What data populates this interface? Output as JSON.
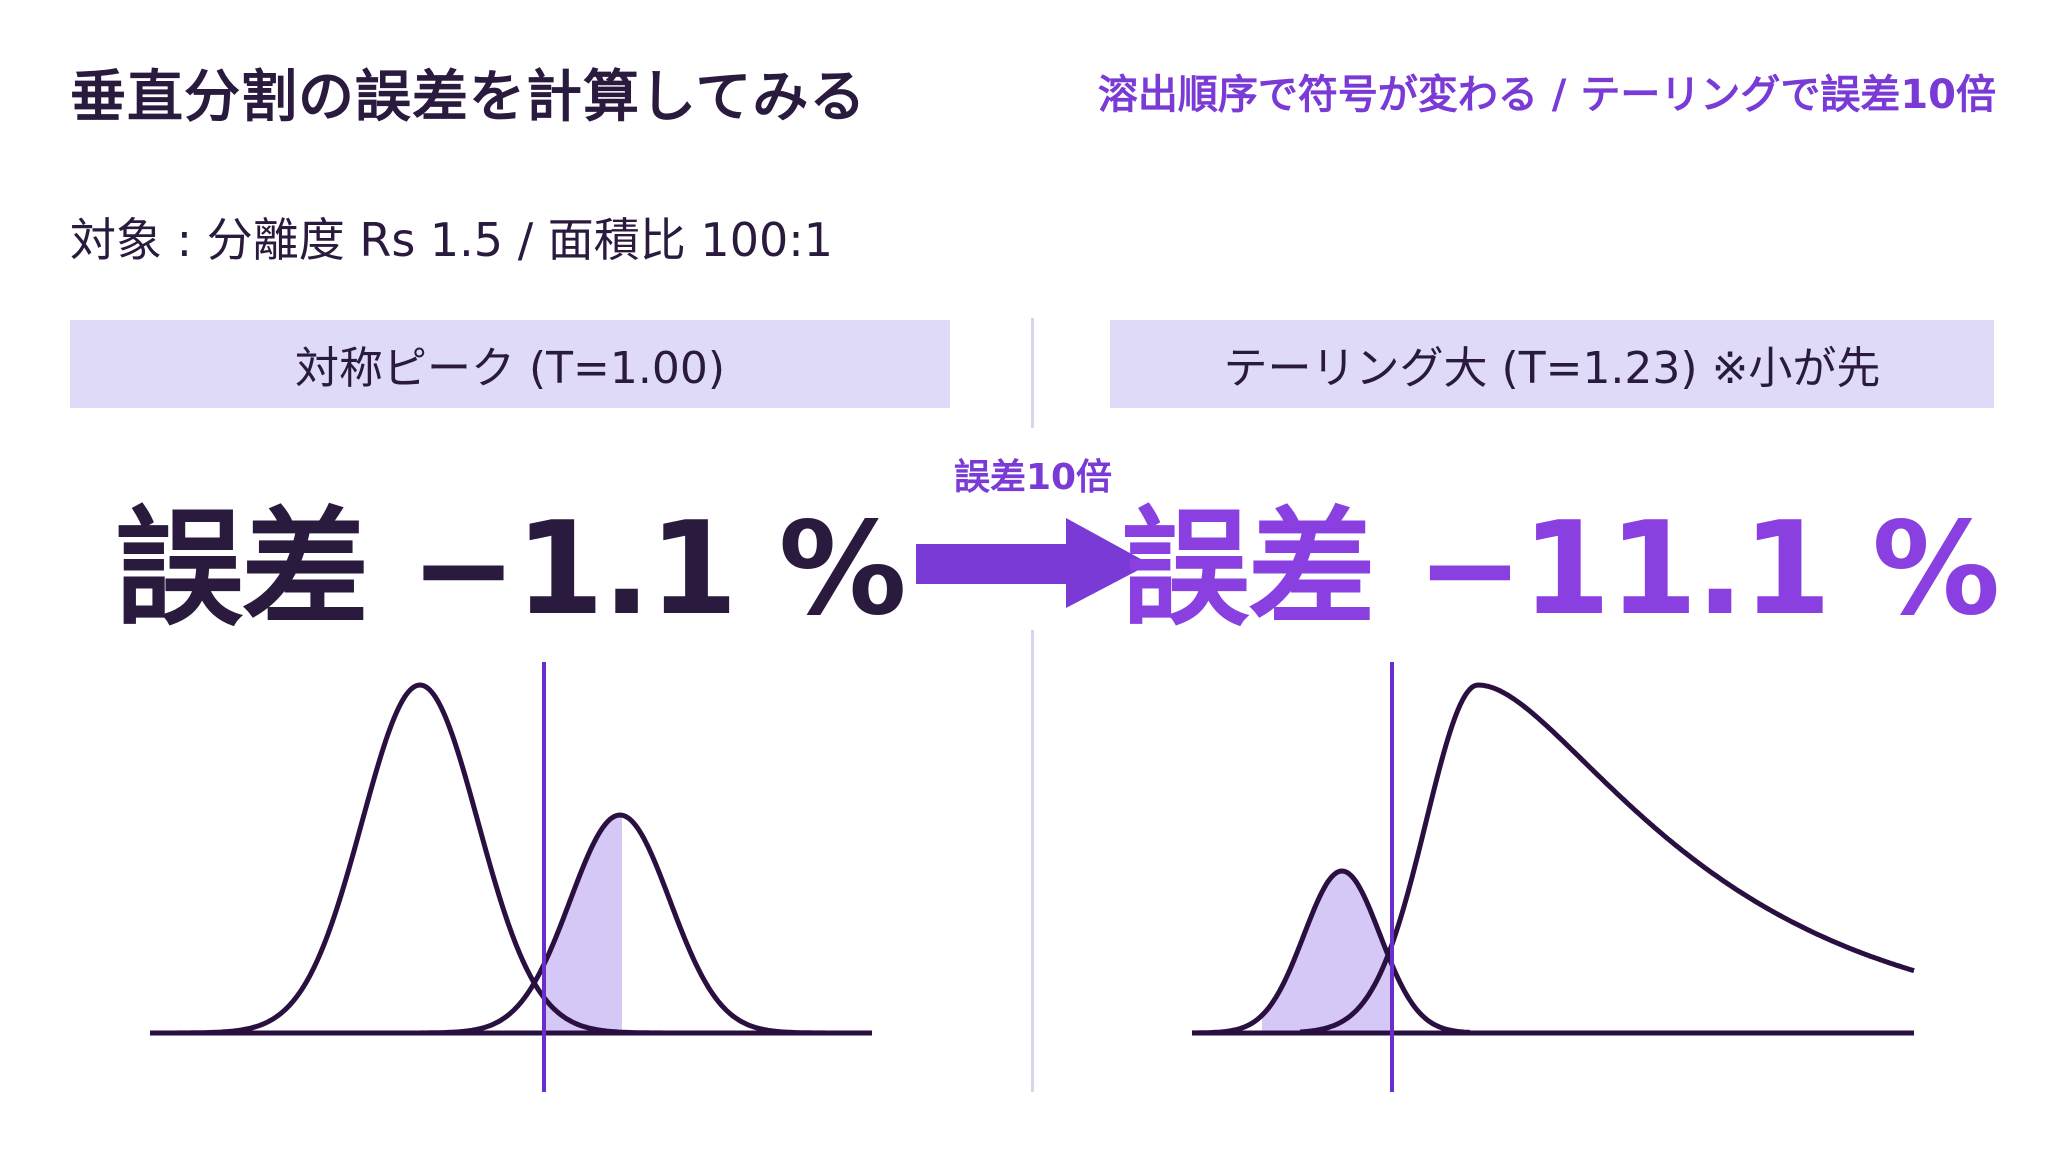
{
  "title": "垂直分割の誤差を計算してみる",
  "subtitle": "溶出順序で符号が変わる / テーリングで誤差10倍",
  "target": "対象 : 分離度 Rs 1.5 / 面積比 100:1",
  "arrow_label": "誤差10倍",
  "left_panel": {
    "header": "対称ピーク (T=1.00)",
    "error_text": "誤差 −1.1 %",
    "error_value_percent": -1.1
  },
  "right_panel": {
    "header": "テーリング大 (T=1.23) ※小が先",
    "error_text": "誤差 −11.1 %",
    "error_value_percent": -11.1
  },
  "colors": {
    "dark_text": "#2a1a3e",
    "accent_purple": "#7a3ad6",
    "big_error_purple": "#8a40e0",
    "header_bg": "#dedaf8",
    "shade_fill": "#d6c8f6",
    "curve_stroke": "#2a1040",
    "split_line": "#6a2ecb"
  },
  "icons": [
    "right-arrow-icon"
  ]
}
